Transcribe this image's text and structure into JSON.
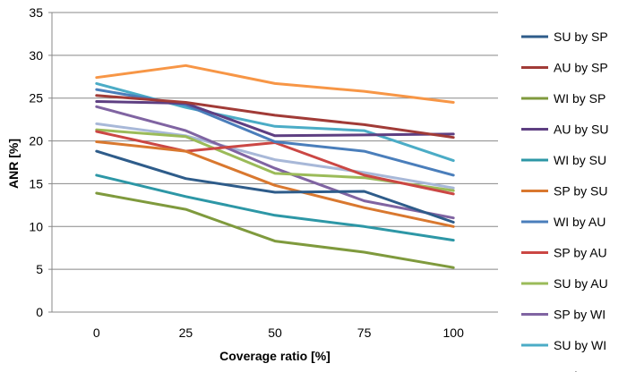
{
  "chart_data": {
    "type": "line",
    "title": "",
    "xlabel": "Coverage ratio [%]",
    "ylabel": "ANR [%]",
    "x": [
      0,
      25,
      50,
      75,
      100
    ],
    "x_tick_labels": [
      "0",
      "25",
      "50",
      "75",
      "100"
    ],
    "ylim": [
      0,
      35
    ],
    "y_ticks": [
      0,
      5,
      10,
      15,
      20,
      25,
      30,
      35
    ],
    "y_tick_labels": [
      "0",
      "5",
      "10",
      "15",
      "20",
      "25",
      "30",
      "35"
    ],
    "grid": "horizontal",
    "legend_position": "right",
    "series": [
      {
        "name": "SU by SP",
        "color": "#2E5C8A",
        "values": [
          18.8,
          15.6,
          14.0,
          14.1,
          10.5
        ]
      },
      {
        "name": "AU by SP",
        "color": "#A13B37",
        "values": [
          25.3,
          24.5,
          23.0,
          21.9,
          20.4
        ]
      },
      {
        "name": "WI by SP",
        "color": "#7F9A3D",
        "values": [
          13.9,
          12.0,
          8.3,
          7.0,
          5.2
        ]
      },
      {
        "name": "AU by SU",
        "color": "#5E3F82",
        "values": [
          24.6,
          24.4,
          20.6,
          20.7,
          20.8
        ]
      },
      {
        "name": "WI by SU",
        "color": "#2D97A6",
        "values": [
          16.0,
          13.5,
          11.3,
          10.0,
          8.4
        ]
      },
      {
        "name": "SP by SU",
        "color": "#D9782F",
        "values": [
          19.9,
          18.8,
          14.8,
          12.2,
          10.0
        ]
      },
      {
        "name": "WI by AU",
        "color": "#4A7EBB",
        "values": [
          26.0,
          24.2,
          19.9,
          18.8,
          16.0
        ]
      },
      {
        "name": "SP by AU",
        "color": "#CB4744",
        "values": [
          21.1,
          18.8,
          19.8,
          16.0,
          13.8
        ]
      },
      {
        "name": "SU by AU",
        "color": "#9BBB59",
        "values": [
          21.3,
          20.5,
          16.2,
          15.7,
          14.2
        ]
      },
      {
        "name": "SP by WI",
        "color": "#8064A2",
        "values": [
          24.0,
          21.2,
          16.8,
          13.0,
          11.0
        ]
      },
      {
        "name": "SU by WI",
        "color": "#4BACC6",
        "values": [
          26.7,
          23.9,
          21.7,
          21.2,
          17.7
        ]
      },
      {
        "name": "AU by WI",
        "color": "#F79646",
        "values": [
          27.4,
          28.8,
          26.7,
          25.8,
          24.5
        ]
      },
      {
        "name": "",
        "color": "#A8B8D8",
        "values": [
          22.0,
          20.6,
          17.8,
          16.3,
          14.5
        ]
      }
    ]
  }
}
